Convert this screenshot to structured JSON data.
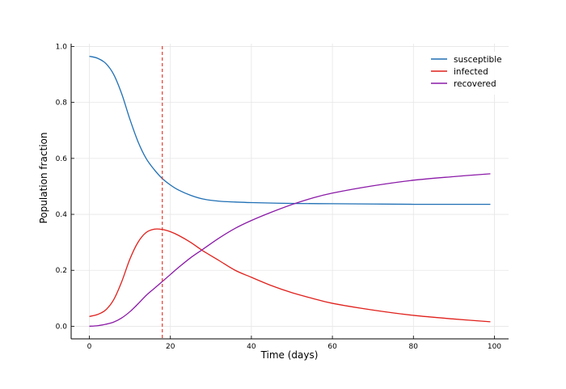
{
  "chart_data": {
    "type": "line",
    "title": "",
    "xlabel": "Time (days)",
    "ylabel": "Population fraction",
    "xlim": [
      -4.5,
      103.5
    ],
    "ylim": [
      -0.045,
      1.01
    ],
    "x_ticks": [
      0,
      20,
      40,
      60,
      80,
      100
    ],
    "y_ticks": [
      0.0,
      0.2,
      0.4,
      0.6,
      0.8,
      1.0
    ],
    "x_tick_labels": [
      "0",
      "20",
      "40",
      "60",
      "80",
      "100"
    ],
    "y_tick_labels": [
      "0.0",
      "0.2",
      "0.4",
      "0.6",
      "0.8",
      "1.0"
    ],
    "grid": true,
    "legend_position": "top-right",
    "vline": {
      "x": 18,
      "color": "#e8392b",
      "style": "dashed"
    },
    "series": [
      {
        "name": "susceptible",
        "color": "#1f6fb4",
        "x": [
          0,
          2,
          4,
          6,
          8,
          10,
          12,
          14,
          16,
          18,
          20,
          22,
          25,
          28,
          32,
          36,
          40,
          50,
          60,
          70,
          80,
          90,
          99
        ],
        "y": [
          0.965,
          0.958,
          0.94,
          0.9,
          0.83,
          0.74,
          0.66,
          0.6,
          0.56,
          0.528,
          0.505,
          0.487,
          0.468,
          0.455,
          0.447,
          0.444,
          0.442,
          0.439,
          0.438,
          0.437,
          0.436,
          0.436,
          0.436
        ]
      },
      {
        "name": "infected",
        "color": "#e0201b",
        "x": [
          0,
          2,
          4,
          6,
          8,
          10,
          12,
          14,
          16,
          18,
          20,
          22,
          25,
          28,
          32,
          36,
          40,
          45,
          50,
          55,
          60,
          70,
          80,
          90,
          99
        ],
        "y": [
          0.035,
          0.042,
          0.058,
          0.095,
          0.16,
          0.24,
          0.3,
          0.335,
          0.347,
          0.346,
          0.338,
          0.325,
          0.3,
          0.27,
          0.235,
          0.2,
          0.175,
          0.145,
          0.12,
          0.1,
          0.082,
          0.058,
          0.039,
          0.026,
          0.016
        ]
      },
      {
        "name": "recovered",
        "color": "#8b1aa8",
        "x": [
          0,
          2,
          4,
          6,
          8,
          10,
          12,
          14,
          16,
          18,
          20,
          22,
          25,
          28,
          32,
          36,
          40,
          45,
          50,
          55,
          60,
          70,
          80,
          90,
          99
        ],
        "y": [
          0.0,
          0.002,
          0.007,
          0.015,
          0.03,
          0.052,
          0.08,
          0.11,
          0.135,
          0.16,
          0.185,
          0.21,
          0.245,
          0.275,
          0.315,
          0.35,
          0.378,
          0.408,
          0.435,
          0.458,
          0.476,
          0.502,
          0.522,
          0.535,
          0.545
        ]
      }
    ]
  }
}
